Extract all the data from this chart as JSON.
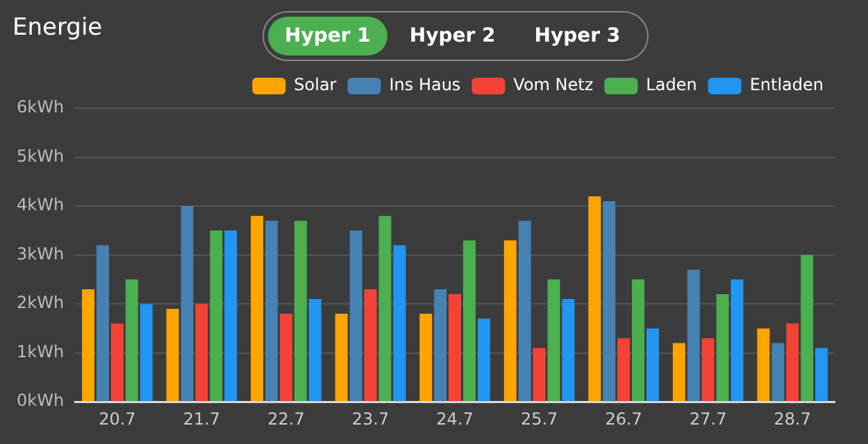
{
  "chart_data": {
    "type": "bar",
    "title": "Energie",
    "annotations": [
      "Hyper 1",
      "Hyper 2",
      "Hyper 3"
    ],
    "categories": [
      "20.7",
      "21.7",
      "22.7",
      "23.7",
      "24.7",
      "25.7",
      "26.7",
      "27.7",
      "28.7"
    ],
    "series": [
      {
        "name": "Solar",
        "color": "#ffa500",
        "values": [
          2.3,
          1.9,
          3.8,
          1.8,
          1.8,
          3.3,
          4.2,
          1.2,
          1.5
        ]
      },
      {
        "name": "Ins Haus",
        "color": "#4682b4",
        "values": [
          3.2,
          4.0,
          3.7,
          3.5,
          2.3,
          3.7,
          4.1,
          2.7,
          1.2
        ]
      },
      {
        "name": "Vom Netz",
        "color": "#f44336",
        "values": [
          1.6,
          2.0,
          1.8,
          2.3,
          2.2,
          1.1,
          1.3,
          1.3,
          1.6
        ]
      },
      {
        "name": "Laden",
        "color": "#4caf50",
        "values": [
          2.5,
          3.5,
          3.7,
          3.8,
          3.3,
          2.5,
          2.5,
          2.2,
          3.0
        ]
      },
      {
        "name": "Entladen",
        "color": "#2196f3",
        "values": [
          2.0,
          3.5,
          2.1,
          3.2,
          1.7,
          2.1,
          1.5,
          2.5,
          1.1
        ]
      }
    ],
    "ylim": [
      0,
      6
    ],
    "yticks": [
      {
        "value": 0,
        "label": "0kWh"
      },
      {
        "value": 1,
        "label": "1kWh"
      },
      {
        "value": 2,
        "label": "2kWh"
      },
      {
        "value": 3,
        "label": "3kWh"
      },
      {
        "value": 4,
        "label": "4kWh"
      },
      {
        "value": 5,
        "label": "5kWh"
      },
      {
        "value": 6,
        "label": "6kWh"
      }
    ],
    "grid": "y",
    "legend": "top right"
  }
}
